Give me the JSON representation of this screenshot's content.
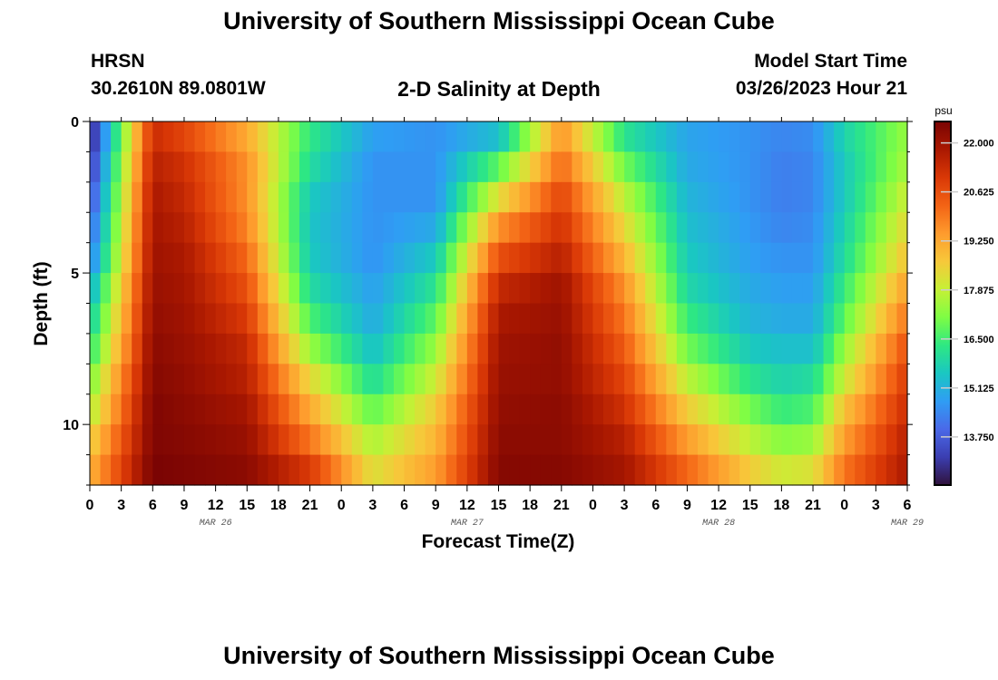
{
  "header": {
    "title": "University of Southern Mississippi Ocean Cube",
    "station": "HRSN",
    "coords": "30.2610N  89.0801W",
    "subtitle": "2-D Salinity at Depth",
    "model_label": "Model Start Time",
    "model_time": "03/26/2023 Hour 21"
  },
  "footer": {
    "title": "University of Southern Mississippi Ocean Cube"
  },
  "chart_data": {
    "type": "heatmap",
    "title": "2-D Salinity at Depth",
    "xlabel": "Forecast Time(Z)",
    "ylabel": "Depth (ft)",
    "x_ticks": [
      "0",
      "3",
      "6",
      "9",
      "12",
      "15",
      "18",
      "21",
      "0",
      "3",
      "6",
      "9",
      "12",
      "15",
      "18",
      "21",
      "0",
      "3",
      "6",
      "9",
      "12",
      "15",
      "18",
      "21",
      "0",
      "3",
      "6"
    ],
    "date_labels": [
      {
        "label": "MAR 26",
        "hour_index": 12
      },
      {
        "label": "MAR 27",
        "hour_index": 36
      },
      {
        "label": "MAR 28",
        "hour_index": 60
      },
      {
        "label": "MAR 29",
        "hour_index": 78
      }
    ],
    "x_range_hours": [
      0,
      78
    ],
    "y_ticks": [
      0,
      5,
      10
    ],
    "ylim": [
      12,
      0
    ],
    "depth_levels_ft": [
      0.5,
      1.5,
      2.5,
      3.5,
      4.5,
      5.5,
      6.5,
      7.5,
      8.5,
      9.5,
      10.5,
      11.5
    ],
    "colorbar": {
      "unit": "psu",
      "min": 12.4,
      "max": 22.6,
      "ticks": [
        "22.000",
        "20.625",
        "19.250",
        "17.875",
        "16.500",
        "15.125",
        "13.750"
      ]
    },
    "colors": [
      "#30123b",
      "#3b3eb1",
      "#4a69e8",
      "#2f9df4",
      "#1ac7c2",
      "#2ee882",
      "#7efd44",
      "#c6f035",
      "#f7c83a",
      "#fe9b2d",
      "#f36315",
      "#d93806",
      "#aa1801",
      "#7a0403"
    ],
    "salinity_approx": [
      [
        12.6,
        21.3,
        20.8,
        19.2,
        16.3,
        14.8,
        14.6,
        15.4,
        19.6,
        16.2,
        14.9,
        14.6,
        14.4,
        14.5,
        15.8,
        17.4
      ],
      [
        13.0,
        21.6,
        21.2,
        19.6,
        16.0,
        14.6,
        14.6,
        16.8,
        20.2,
        17.0,
        15.0,
        14.6,
        14.3,
        14.4,
        15.6,
        17.6
      ],
      [
        13.4,
        21.8,
        21.4,
        19.6,
        15.6,
        14.6,
        14.6,
        18.3,
        20.8,
        17.8,
        15.2,
        14.6,
        14.3,
        14.4,
        15.6,
        18.0
      ],
      [
        13.8,
        21.9,
        21.6,
        19.8,
        15.5,
        14.6,
        15.0,
        19.6,
        21.2,
        18.4,
        15.4,
        14.7,
        14.4,
        14.5,
        15.8,
        18.4
      ],
      [
        14.2,
        22.0,
        21.8,
        20.2,
        15.6,
        14.6,
        15.6,
        20.6,
        21.6,
        19.0,
        15.6,
        14.8,
        14.6,
        14.6,
        16.0,
        18.8
      ],
      [
        15.0,
        22.1,
        21.9,
        20.6,
        16.0,
        14.8,
        16.2,
        21.4,
        22.0,
        19.6,
        15.9,
        15.0,
        14.8,
        14.8,
        16.4,
        19.4
      ],
      [
        15.6,
        22.2,
        22.0,
        21.0,
        16.6,
        15.0,
        16.8,
        21.8,
        22.1,
        20.0,
        16.4,
        15.2,
        15.0,
        15.0,
        16.8,
        20.0
      ],
      [
        16.2,
        22.3,
        22.1,
        21.4,
        17.4,
        15.4,
        17.4,
        22.0,
        22.2,
        20.4,
        17.0,
        15.6,
        15.4,
        15.4,
        17.4,
        20.6
      ],
      [
        17.0,
        22.4,
        22.2,
        21.6,
        18.4,
        16.0,
        18.0,
        22.1,
        22.2,
        20.8,
        17.8,
        16.2,
        15.8,
        16.0,
        18.0,
        21.0
      ],
      [
        17.6,
        22.5,
        22.3,
        21.9,
        19.2,
        16.8,
        18.6,
        22.2,
        22.3,
        21.2,
        18.6,
        17.0,
        16.4,
        16.6,
        18.8,
        21.3
      ],
      [
        18.4,
        22.5,
        22.4,
        22.1,
        20.0,
        17.6,
        19.0,
        22.3,
        22.3,
        21.6,
        19.4,
        17.8,
        17.2,
        17.4,
        19.4,
        21.6
      ],
      [
        19.0,
        22.6,
        22.5,
        22.3,
        21.0,
        18.2,
        19.4,
        22.4,
        22.4,
        21.9,
        20.2,
        18.6,
        18.0,
        18.2,
        20.0,
        21.8
      ]
    ],
    "salinity_time_hours": [
      0,
      6,
      9,
      15,
      21,
      27,
      33,
      39,
      45,
      51,
      57,
      63,
      66,
      69,
      72,
      78
    ]
  }
}
